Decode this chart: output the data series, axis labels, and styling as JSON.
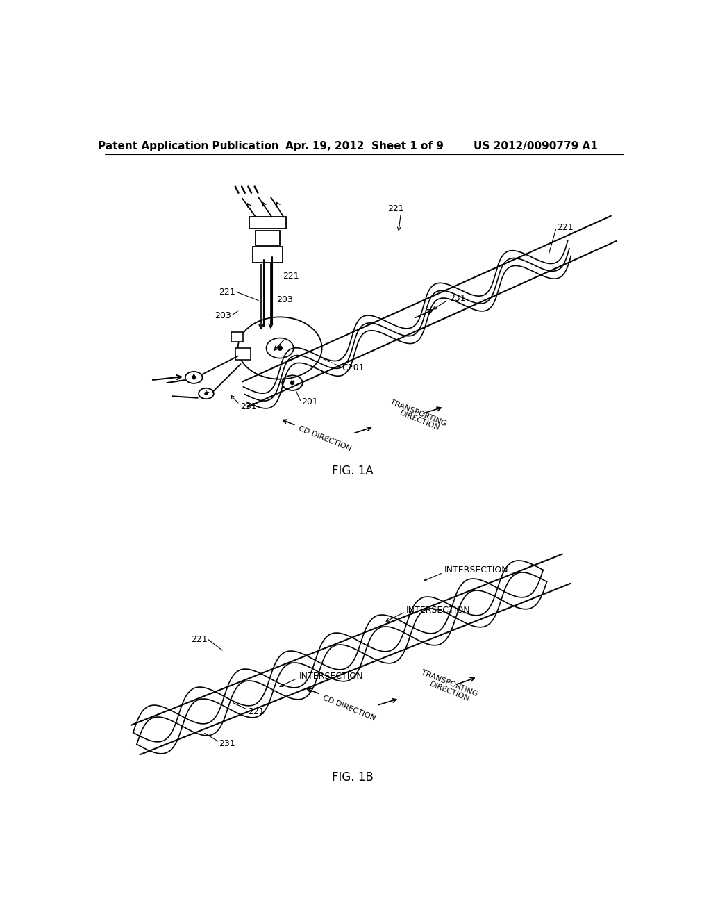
{
  "background_color": "#ffffff",
  "header_left": "Patent Application Publication",
  "header_middle": "Apr. 19, 2012  Sheet 1 of 9",
  "header_right": "US 2012/0090779 A1",
  "fig1a_label": "FIG. 1A",
  "fig1b_label": "FIG. 1B",
  "line_color": "#000000",
  "line_width": 1.3
}
